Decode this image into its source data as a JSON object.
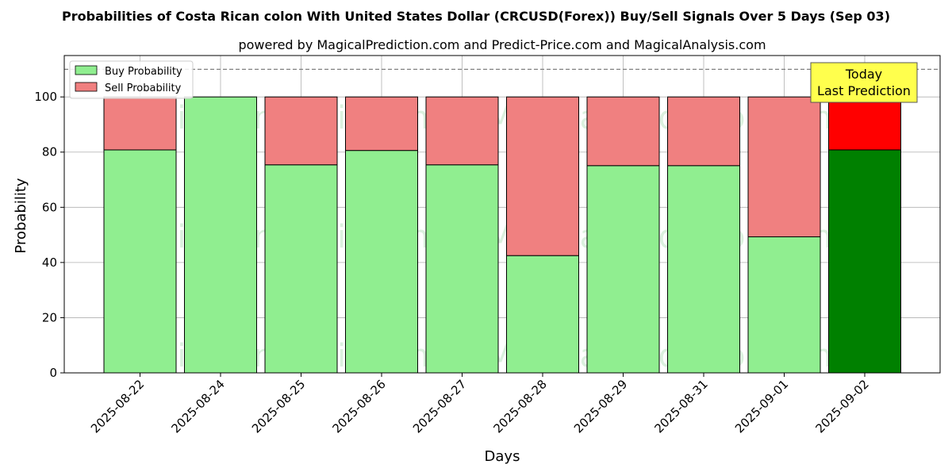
{
  "title": "Probabilities of Costa Rican colon With United States Dollar (CRCUSD(Forex)) Buy/Sell Signals Over 5 Days (Sep 03)",
  "subtitle": "powered by MagicalPrediction.com and Predict-Price.com and MagicalAnalysis.com",
  "watermarks": [
    "MagicalAnalysis.com",
    "MagicalPrediction.com"
  ],
  "annotation": {
    "line1": "Today",
    "line2": "Last Prediction"
  },
  "colors": {
    "buy": "#90ee90",
    "sell": "#f08080",
    "buy_last": "#008000",
    "sell_last": "#ff0000",
    "annotation_bg": "#ffff4d"
  },
  "chart_data": {
    "type": "bar",
    "stacked": true,
    "categories": [
      "2025-08-22",
      "2025-08-24",
      "2025-08-25",
      "2025-08-26",
      "2025-08-27",
      "2025-08-28",
      "2025-08-29",
      "2025-08-31",
      "2025-09-01",
      "2025-09-02"
    ],
    "series": [
      {
        "name": "Buy Probability",
        "values": [
          80.8,
          100,
          75.4,
          80.6,
          75.4,
          42.5,
          75.1,
          75.1,
          49.3,
          80.8
        ]
      },
      {
        "name": "Sell Probability",
        "values": [
          19.2,
          0,
          24.6,
          19.4,
          24.6,
          57.5,
          24.9,
          24.9,
          50.7,
          19.2
        ]
      }
    ],
    "xlabel": "Days",
    "ylabel": "Probability",
    "ylim": [
      0,
      115
    ],
    "yticks": [
      0,
      20,
      40,
      60,
      80,
      100
    ],
    "reference_line": 110,
    "grid": true,
    "legend_position": "top-left"
  }
}
